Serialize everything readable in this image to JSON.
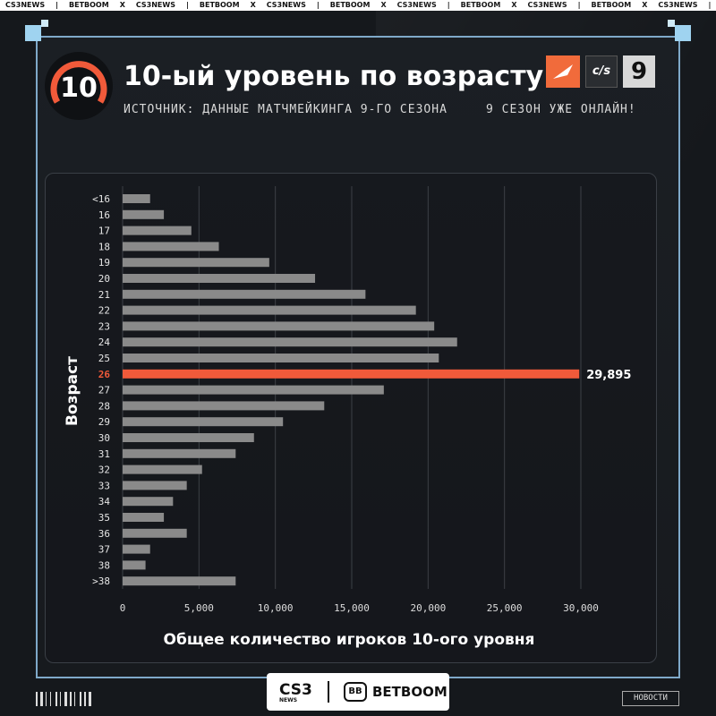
{
  "ticker": [
    "CS3NEWS",
    "|",
    "BETBOOM",
    "X",
    "CS3NEWS",
    "|",
    "BETBOOM",
    "X",
    "CS3NEWS",
    "|",
    "BETBOOM",
    "X",
    "CS3NEWS",
    "|",
    "BETBOOM",
    "X",
    "CS3NEWS",
    "|",
    "BETBOOM",
    "X",
    "CS3NEWS",
    "|",
    "BETBOOM"
  ],
  "header": {
    "level": "10",
    "title": "10-ый уровень по возрасту",
    "source": "ИСТОЧНИК: ДАННЫЕ МАТЧМЕЙКИНГА 9-ГО СЕЗОНА",
    "tagline": "9 СЕЗОН УЖЕ ОНЛАЙН!",
    "logo_cs": "c/s",
    "logo_season": "9"
  },
  "colors": {
    "accent": "#f15a3a",
    "bar": "#8a8a8a",
    "frame": "#7fa9c9"
  },
  "chart_data": {
    "type": "bar",
    "orientation": "horizontal",
    "categories": [
      "<16",
      "16",
      "17",
      "18",
      "19",
      "20",
      "21",
      "22",
      "23",
      "24",
      "25",
      "26",
      "27",
      "28",
      "29",
      "30",
      "31",
      "32",
      "33",
      "34",
      "35",
      "36",
      "37",
      "38",
      ">38"
    ],
    "values": [
      1800,
      2700,
      4500,
      6300,
      9600,
      12600,
      15900,
      19200,
      20400,
      21900,
      20700,
      29895,
      17100,
      13200,
      10500,
      8600,
      7400,
      5200,
      4200,
      3300,
      2700,
      4200,
      1800,
      1500,
      7400
    ],
    "highlight": {
      "category": "26",
      "value_label": "29,895"
    },
    "xlabel": "Общее количество игроков 10-ого уровня",
    "ylabel": "Возраст",
    "xticks": [
      "0",
      "5,000",
      "10,000",
      "15,000",
      "20,000",
      "25,000",
      "30,000"
    ],
    "xlim": [
      0,
      30000
    ],
    "grid": true
  },
  "footer": {
    "logo_left": "CS3",
    "logo_left_sub": "NEWS",
    "logo_icon": "BB",
    "logo_right": "BETBOOM",
    "news": "НОВОСТИ"
  }
}
